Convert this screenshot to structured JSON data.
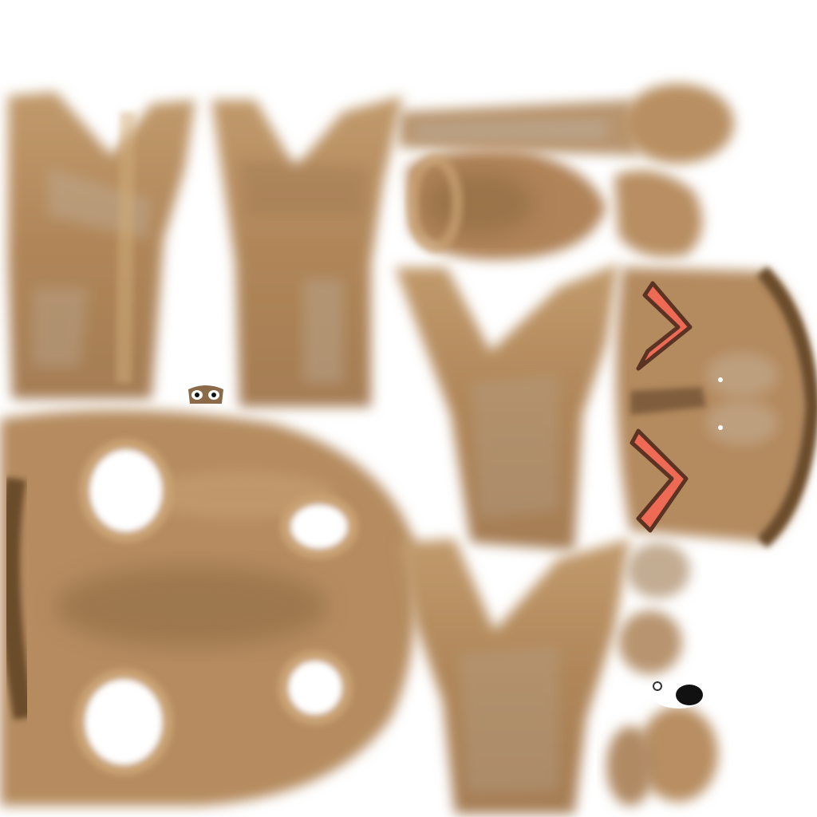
{
  "texture": {
    "background_color": "#ffffff",
    "colors": {
      "base_tan": "#b48a5e",
      "light_tan": "#c9a273",
      "grey_tan": "#b7a591",
      "dark_brown": "#6a4c2c",
      "shadow_brown": "#8a6840",
      "red_accent": "#ee6a55",
      "red_outline": "#5a3322",
      "eye_white": "#ffffff",
      "eye_black": "#111111"
    },
    "pieces": [
      {
        "name": "torso-front-left-panel",
        "shape": "tapered-vest"
      },
      {
        "name": "torso-front-right-panel",
        "shape": "tapered-vest"
      },
      {
        "name": "upper-arm-strip",
        "shape": "long-strip"
      },
      {
        "name": "shoulder-cap",
        "shape": "oval"
      },
      {
        "name": "head-back-piece",
        "shape": "rounded-lump"
      },
      {
        "name": "hand-piece",
        "shape": "small-lump"
      },
      {
        "name": "torso-back-panel",
        "shape": "tapered-vest"
      },
      {
        "name": "face-piece",
        "shape": "face-with-red-chevrons"
      },
      {
        "name": "pelvis-piece",
        "shape": "wide-blob-with-holes"
      },
      {
        "name": "leg-panel",
        "shape": "tapered-vest"
      },
      {
        "name": "foot-pieces",
        "shape": "small-lumps"
      }
    ],
    "eye_marks": [
      {
        "name": "small-eye-pair",
        "icon": "eyes-icon"
      },
      {
        "name": "single-eye",
        "icon": "eye-icon"
      }
    ]
  }
}
